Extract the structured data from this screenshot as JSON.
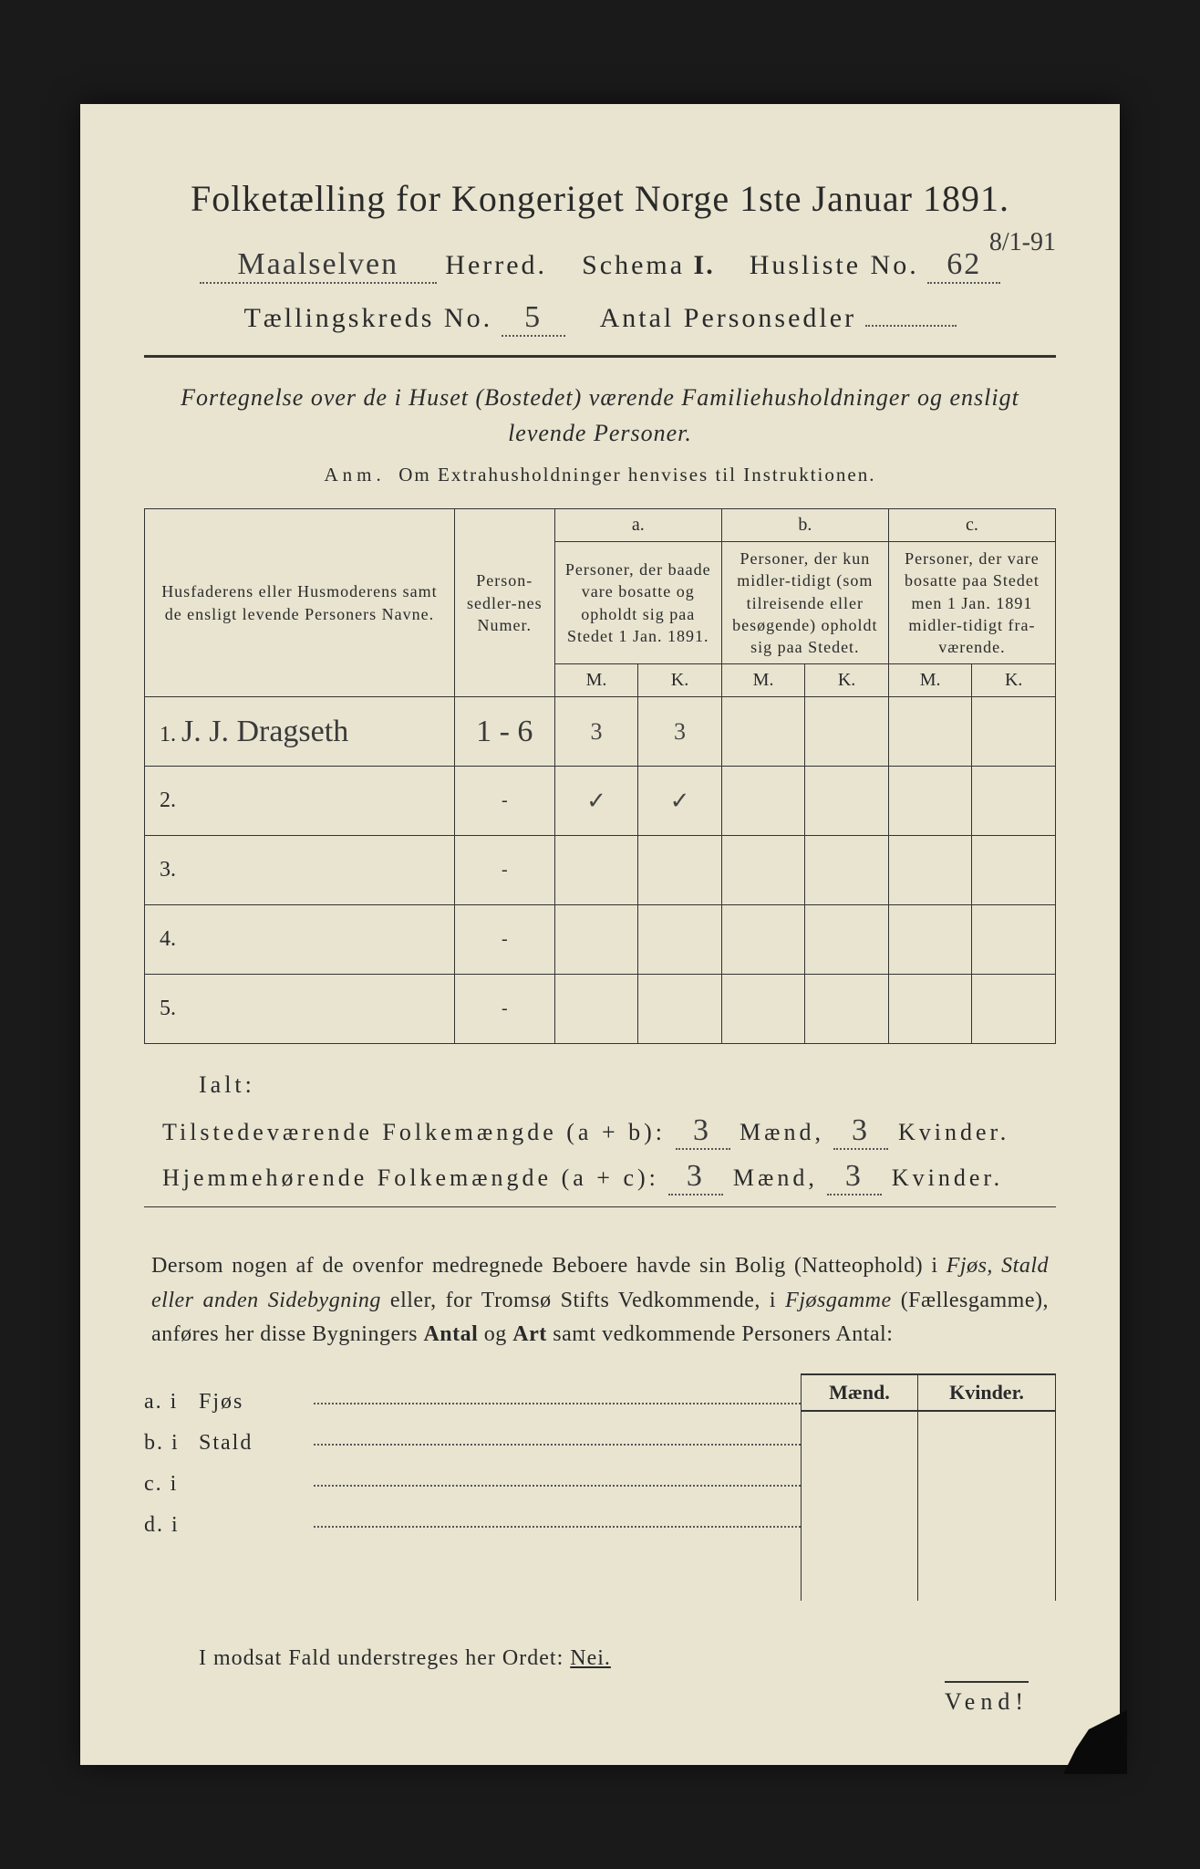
{
  "title": "Folketælling for Kongeriget Norge 1ste Januar 1891.",
  "header": {
    "herred_value": "Maalselven",
    "herred_label": "Herred.",
    "schema_label": "Schema",
    "schema_value": "I.",
    "husliste_label": "Husliste No.",
    "husliste_value": "62",
    "date_annot": "8/1-91",
    "kreds_label": "Tællingskreds No.",
    "kreds_value": "5",
    "antal_label": "Antal Personsedler",
    "antal_value": ""
  },
  "fortegnelse": "Fortegnelse over de i Huset (Bostedet) værende Familiehusholdninger og ensligt levende Personer.",
  "anm_lead": "Anm.",
  "anm_text": "Om Extrahusholdninger henvises til Instruktionen.",
  "table": {
    "col_names": "Husfaderens eller Husmoderens samt de ensligt levende Personers Navne.",
    "col_num": "Person-sedler-nes Numer.",
    "col_a_letter": "a.",
    "col_a": "Personer, der baade vare bosatte og opholdt sig paa Stedet 1 Jan. 1891.",
    "col_b_letter": "b.",
    "col_b": "Personer, der kun midler-tidigt (som tilreisende eller besøgende) opholdt sig paa Stedet.",
    "col_c_letter": "c.",
    "col_c": "Personer, der vare bosatte paa Stedet men 1 Jan. 1891 midler-tidigt fra-værende.",
    "m": "M.",
    "k": "K.",
    "rows": [
      {
        "n": "1.",
        "name": "J. J. Dragseth",
        "num": "1 - 6",
        "a_m": "3",
        "a_k": "3",
        "b_m": "",
        "b_k": "",
        "c_m": "",
        "c_k": ""
      },
      {
        "n": "2.",
        "name": "",
        "num": "-",
        "a_m": "✓",
        "a_k": "✓",
        "b_m": "",
        "b_k": "",
        "c_m": "",
        "c_k": ""
      },
      {
        "n": "3.",
        "name": "",
        "num": "-",
        "a_m": "",
        "a_k": "",
        "b_m": "",
        "b_k": "",
        "c_m": "",
        "c_k": ""
      },
      {
        "n": "4.",
        "name": "",
        "num": "-",
        "a_m": "",
        "a_k": "",
        "b_m": "",
        "b_k": "",
        "c_m": "",
        "c_k": ""
      },
      {
        "n": "5.",
        "name": "",
        "num": "-",
        "a_m": "",
        "a_k": "",
        "b_m": "",
        "b_k": "",
        "c_m": "",
        "c_k": ""
      }
    ]
  },
  "ialt": "Ialt:",
  "sum1": {
    "label": "Tilstedeværende Folkemængde (a + b):",
    "m": "3",
    "m_label": "Mænd,",
    "k": "3",
    "k_label": "Kvinder."
  },
  "sum2": {
    "label": "Hjemmehørende Folkemængde (a + c):",
    "m": "3",
    "m_label": "Mænd,",
    "k": "3",
    "k_label": "Kvinder."
  },
  "para": {
    "t1": "Dersom nogen af de ovenfor medregnede Beboere havde sin Bolig (Natteophold) i ",
    "i1": "Fjøs, Stald eller anden Sidebygning",
    "t2": " eller, for Tromsø Stifts Vedkommende, i ",
    "i2": "Fjøsgamme",
    "t3": " (Fællesgamme), anføres her disse Bygningers ",
    "b1": "Antal",
    "t4": " og ",
    "b2": "Art",
    "t5": " samt vedkommende Personers Antal:"
  },
  "bld": {
    "h_m": "Mænd.",
    "h_k": "Kvinder.",
    "rows": [
      {
        "lab": "a.  i",
        "kind": "Fjøs"
      },
      {
        "lab": "b.  i",
        "kind": "Stald"
      },
      {
        "lab": "c.  i",
        "kind": ""
      },
      {
        "lab": "d.  i",
        "kind": ""
      }
    ]
  },
  "nei_line_pre": "I modsat Fald understreges her Ordet: ",
  "nei": "Nei.",
  "vend": "Vend!",
  "colors": {
    "paper": "#e8e4d0",
    "ink": "#2a2a2a",
    "bg": "#1a1a1a"
  }
}
